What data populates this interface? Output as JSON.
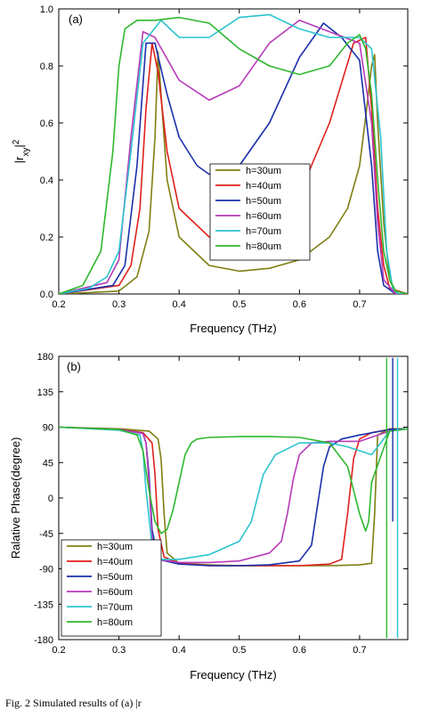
{
  "caption": "Fig. 2 Simulated results of (a) |r",
  "chart_data": [
    {
      "type": "line",
      "panel_label": "(a)",
      "xlabel": "Frequency (THz)",
      "ylabel": "|r",
      "ylabel_sub": "xy",
      "ylabel_sup": "2",
      "xlim": [
        0.2,
        0.78
      ],
      "ylim": [
        0.0,
        1.0
      ],
      "xticks": [
        0.2,
        0.3,
        0.4,
        0.5,
        0.6,
        0.7
      ],
      "yticks": [
        0.0,
        0.2,
        0.4,
        0.6,
        0.8,
        1.0
      ],
      "xtick_labels": [
        "0.2",
        "0.3",
        "0.4",
        "0.5",
        "0.6",
        "0.7"
      ],
      "ytick_labels": [
        "0.0",
        "0.2",
        "0.4",
        "0.6",
        "0.8",
        "1.0"
      ],
      "legend_position": "center-right",
      "series": [
        {
          "name": "h=30um",
          "color": "#7f7f12",
          "x": [
            0.2,
            0.3,
            0.33,
            0.35,
            0.36,
            0.365,
            0.37,
            0.38,
            0.4,
            0.45,
            0.5,
            0.55,
            0.6,
            0.65,
            0.68,
            0.7,
            0.71,
            0.72,
            0.725,
            0.73,
            0.74,
            0.75,
            0.76,
            0.78
          ],
          "y": [
            0.0,
            0.01,
            0.06,
            0.22,
            0.55,
            0.85,
            0.7,
            0.4,
            0.2,
            0.1,
            0.08,
            0.09,
            0.12,
            0.2,
            0.3,
            0.45,
            0.62,
            0.8,
            0.84,
            0.6,
            0.25,
            0.05,
            0.0,
            0.0
          ]
        },
        {
          "name": "h=40um",
          "color": "#e0201b",
          "x": [
            0.2,
            0.3,
            0.32,
            0.335,
            0.345,
            0.355,
            0.365,
            0.38,
            0.4,
            0.45,
            0.5,
            0.55,
            0.6,
            0.65,
            0.69,
            0.71,
            0.72,
            0.73,
            0.74,
            0.75,
            0.78
          ],
          "y": [
            0.0,
            0.03,
            0.1,
            0.3,
            0.65,
            0.88,
            0.78,
            0.5,
            0.3,
            0.2,
            0.19,
            0.22,
            0.35,
            0.6,
            0.88,
            0.9,
            0.65,
            0.3,
            0.1,
            0.02,
            0.0
          ]
        },
        {
          "name": "h=50um",
          "color": "#1a2faa",
          "x": [
            0.2,
            0.29,
            0.31,
            0.33,
            0.345,
            0.36,
            0.38,
            0.4,
            0.43,
            0.45,
            0.5,
            0.55,
            0.6,
            0.64,
            0.67,
            0.7,
            0.72,
            0.73,
            0.74,
            0.76,
            0.78
          ],
          "y": [
            0.0,
            0.03,
            0.1,
            0.45,
            0.88,
            0.88,
            0.7,
            0.55,
            0.45,
            0.42,
            0.45,
            0.6,
            0.83,
            0.95,
            0.9,
            0.82,
            0.45,
            0.15,
            0.03,
            0.0,
            0.0
          ]
        },
        {
          "name": "h=60um",
          "color": "#b73ab8",
          "x": [
            0.2,
            0.28,
            0.3,
            0.32,
            0.34,
            0.36,
            0.4,
            0.45,
            0.5,
            0.55,
            0.6,
            0.65,
            0.7,
            0.72,
            0.73,
            0.74,
            0.76,
            0.78
          ],
          "y": [
            0.0,
            0.04,
            0.12,
            0.55,
            0.92,
            0.9,
            0.75,
            0.68,
            0.73,
            0.88,
            0.96,
            0.92,
            0.88,
            0.6,
            0.25,
            0.05,
            0.0,
            0.0
          ]
        },
        {
          "name": "h=70um",
          "color": "#2cc4cf",
          "x": [
            0.2,
            0.25,
            0.28,
            0.3,
            0.32,
            0.34,
            0.37,
            0.4,
            0.45,
            0.5,
            0.55,
            0.6,
            0.65,
            0.7,
            0.72,
            0.735,
            0.745,
            0.755,
            0.765,
            0.78
          ],
          "y": [
            0.0,
            0.02,
            0.06,
            0.15,
            0.5,
            0.88,
            0.96,
            0.9,
            0.9,
            0.97,
            0.98,
            0.93,
            0.9,
            0.9,
            0.86,
            0.55,
            0.15,
            0.02,
            0.0,
            0.0
          ]
        },
        {
          "name": "h=80um",
          "color": "#2eb82e",
          "x": [
            0.2,
            0.24,
            0.27,
            0.29,
            0.3,
            0.31,
            0.33,
            0.36,
            0.4,
            0.45,
            0.5,
            0.55,
            0.6,
            0.65,
            0.68,
            0.7,
            0.71,
            0.72,
            0.73,
            0.74,
            0.75,
            0.76,
            0.78
          ],
          "y": [
            0.0,
            0.03,
            0.15,
            0.5,
            0.8,
            0.93,
            0.96,
            0.96,
            0.97,
            0.95,
            0.86,
            0.8,
            0.77,
            0.8,
            0.88,
            0.91,
            0.86,
            0.7,
            0.4,
            0.15,
            0.05,
            0.01,
            0.0
          ]
        }
      ]
    },
    {
      "type": "line",
      "panel_label": "(b)",
      "xlabel": "Frequency (THz)",
      "ylabel": "Ralative Phase(degree)",
      "xlim": [
        0.2,
        0.78
      ],
      "ylim": [
        -180,
        180
      ],
      "xticks": [
        0.2,
        0.3,
        0.4,
        0.5,
        0.6,
        0.7
      ],
      "yticks": [
        -180,
        -135,
        -90,
        -45,
        0,
        45,
        90,
        135,
        180
      ],
      "xtick_labels": [
        "0.2",
        "0.3",
        "0.4",
        "0.5",
        "0.6",
        "0.7"
      ],
      "ytick_labels": [
        "-180",
        "-135",
        "-90",
        "-45",
        "0",
        "45",
        "90",
        "135",
        "180"
      ],
      "legend_position": "bottom-left",
      "series": [
        {
          "name": "h=30um",
          "color": "#7f7f12",
          "x": [
            0.2,
            0.3,
            0.35,
            0.365,
            0.37,
            0.375,
            0.38,
            0.4,
            0.45,
            0.5,
            0.55,
            0.6,
            0.65,
            0.7,
            0.72,
            0.725,
            0.73,
            0.75,
            0.78
          ],
          "y": [
            90,
            88,
            85,
            75,
            50,
            -20,
            -70,
            -83,
            -85,
            -86,
            -86,
            -86,
            -86,
            -85,
            -83,
            -20,
            80,
            88,
            88
          ]
        },
        {
          "name": "h=40um",
          "color": "#e0201b",
          "x": [
            0.2,
            0.3,
            0.34,
            0.355,
            0.36,
            0.365,
            0.375,
            0.4,
            0.45,
            0.5,
            0.55,
            0.6,
            0.65,
            0.67,
            0.68,
            0.69,
            0.7,
            0.72,
            0.75,
            0.78
          ],
          "y": [
            90,
            87,
            83,
            70,
            30,
            -40,
            -75,
            -83,
            -86,
            -86,
            -86,
            -86,
            -84,
            -78,
            -20,
            50,
            75,
            83,
            87,
            88
          ]
        },
        {
          "name": "h=50um",
          "color": "#1a2faa",
          "x": [
            0.2,
            0.3,
            0.34,
            0.345,
            0.35,
            0.355,
            0.365,
            0.4,
            0.45,
            0.5,
            0.55,
            0.6,
            0.62,
            0.63,
            0.64,
            0.65,
            0.67,
            0.7,
            0.75,
            0.78
          ],
          "y": [
            90,
            87,
            82,
            70,
            30,
            -40,
            -78,
            -84,
            -86,
            -86,
            -85,
            -80,
            -60,
            -10,
            40,
            65,
            75,
            80,
            87,
            88
          ]
        },
        {
          "name": "h=60um",
          "color": "#b73ab8",
          "x": [
            0.2,
            0.3,
            0.34,
            0.345,
            0.35,
            0.355,
            0.365,
            0.4,
            0.45,
            0.5,
            0.55,
            0.57,
            0.58,
            0.59,
            0.6,
            0.62,
            0.65,
            0.7,
            0.75,
            0.78
          ],
          "y": [
            90,
            87,
            82,
            70,
            20,
            -50,
            -78,
            -82,
            -82,
            -80,
            -70,
            -55,
            -20,
            25,
            55,
            70,
            72,
            72,
            85,
            88
          ]
        },
        {
          "name": "h=70um",
          "color": "#2cc4cf",
          "x": [
            0.2,
            0.3,
            0.335,
            0.34,
            0.345,
            0.355,
            0.37,
            0.4,
            0.45,
            0.5,
            0.52,
            0.53,
            0.54,
            0.56,
            0.6,
            0.65,
            0.68,
            0.7,
            0.72,
            0.73,
            0.75,
            0.78
          ],
          "y": [
            90,
            86,
            80,
            60,
            10,
            -60,
            -78,
            -78,
            -72,
            -55,
            -30,
            0,
            30,
            55,
            70,
            70,
            65,
            60,
            55,
            65,
            85,
            88
          ]
        },
        {
          "name": "h=80um",
          "color": "#2eb82e",
          "x": [
            0.2,
            0.3,
            0.33,
            0.34,
            0.35,
            0.36,
            0.37,
            0.38,
            0.39,
            0.4,
            0.41,
            0.42,
            0.43,
            0.45,
            0.5,
            0.55,
            0.6,
            0.65,
            0.68,
            0.7,
            0.71,
            0.715,
            0.72,
            0.75,
            0.78
          ],
          "y": [
            90,
            87,
            80,
            60,
            10,
            -30,
            -45,
            -40,
            -15,
            20,
            55,
            70,
            75,
            77,
            78,
            78,
            77,
            70,
            40,
            -20,
            -42,
            -30,
            20,
            85,
            88
          ]
        }
      ]
    }
  ],
  "spikes": [
    {
      "color": "#2eb82e",
      "x": 0.745,
      "y": [
        -178,
        178
      ]
    },
    {
      "color": "#2cc4cf",
      "x": 0.763,
      "y": [
        -178,
        178
      ]
    },
    {
      "color": "#1a2faa",
      "x": 0.755,
      "y": [
        -30,
        178
      ]
    }
  ]
}
